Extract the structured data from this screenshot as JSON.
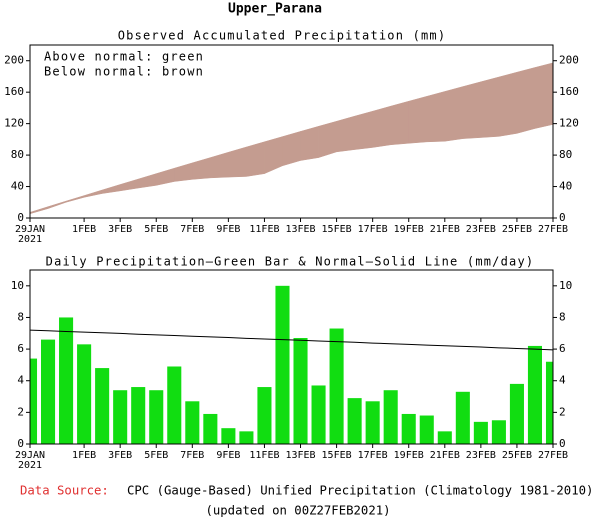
{
  "title": "Upper_Parana",
  "chart_data": [
    {
      "type": "band",
      "title": "Observed Accumulated Precipitation (mm)",
      "annotations": [
        "Above normal: green",
        "Below normal: brown"
      ],
      "categories": [
        "29JAN",
        null,
        null,
        "1FEB",
        null,
        "3FEB",
        null,
        "5FEB",
        null,
        "7FEB",
        null,
        "9FEB",
        null,
        "11FEB",
        null,
        "13FEB",
        null,
        "15FEB",
        null,
        "17FEB",
        null,
        "19FEB",
        null,
        "21FEB",
        null,
        "23FEB",
        null,
        "25FEB",
        null,
        "27FEB"
      ],
      "year_label": "2021",
      "series": [
        {
          "values": [
            5.4,
            12.0,
            20.0,
            26.3,
            31.1,
            34.5,
            38.1,
            41.5,
            46.4,
            49.1,
            51.0,
            52.0,
            52.8,
            56.4,
            66.4,
            73.1,
            76.8,
            84.1,
            87.0,
            89.7,
            93.1,
            95.0,
            96.8,
            97.6,
            100.9,
            102.3,
            103.8,
            107.6,
            113.8,
            119.0
          ]
        },
        {
          "values": [
            7.2,
            14.4,
            21.5,
            28.5,
            35.6,
            42.6,
            49.5,
            56.4,
            63.3,
            70.1,
            76.8,
            83.6,
            90.3,
            96.9,
            103.5,
            110.1,
            116.6,
            123.0,
            129.5,
            135.8,
            142.2,
            148.5,
            154.7,
            160.9,
            167.1,
            173.2,
            179.3,
            185.4,
            191.4,
            197.3
          ]
        }
      ],
      "above_color": "#00dd00",
      "below_color": "#c49c90",
      "ylim": [
        0,
        220
      ],
      "yticks": [
        0,
        40,
        80,
        120,
        160,
        200
      ]
    },
    {
      "type": "bar",
      "title": "Daily Precipitation—Green Bar & Normal—Solid Line (mm/day)",
      "categories": [
        "29JAN",
        null,
        null,
        "1FEB",
        null,
        "3FEB",
        null,
        "5FEB",
        null,
        "7FEB",
        null,
        "9FEB",
        null,
        "11FEB",
        null,
        "13FEB",
        null,
        "15FEB",
        null,
        "17FEB",
        null,
        "19FEB",
        null,
        "21FEB",
        null,
        "23FEB",
        null,
        "25FEB",
        null,
        "27FEB"
      ],
      "year_label": "2021",
      "values": [
        5.4,
        6.6,
        8.0,
        6.3,
        4.8,
        3.4,
        3.6,
        3.4,
        4.9,
        2.7,
        1.9,
        1.0,
        0.8,
        3.6,
        10.0,
        6.7,
        3.7,
        7.3,
        2.9,
        2.7,
        3.4,
        1.9,
        1.8,
        0.8,
        3.3,
        1.4,
        1.5,
        3.8,
        6.2,
        5.2
      ],
      "color": "#11dd11",
      "normal": {
        "color": "#000000",
        "values": [
          7.2,
          7.16,
          7.11,
          7.07,
          7.03,
          6.99,
          6.94,
          6.9,
          6.86,
          6.81,
          6.77,
          6.73,
          6.68,
          6.64,
          6.6,
          6.56,
          6.51,
          6.47,
          6.43,
          6.38,
          6.34,
          6.3,
          6.25,
          6.21,
          6.17,
          6.13,
          6.08,
          6.04,
          6.0,
          5.95
        ]
      },
      "ylim": [
        0,
        11
      ],
      "yticks": [
        0,
        2,
        4,
        6,
        8,
        10
      ]
    }
  ],
  "footer": {
    "source_label": "Data Source:",
    "source": "CPC (Gauge-Based) Unified Precipitation (Climatology 1981-2010)",
    "updated": "(updated on 00Z27FEB2021)"
  }
}
